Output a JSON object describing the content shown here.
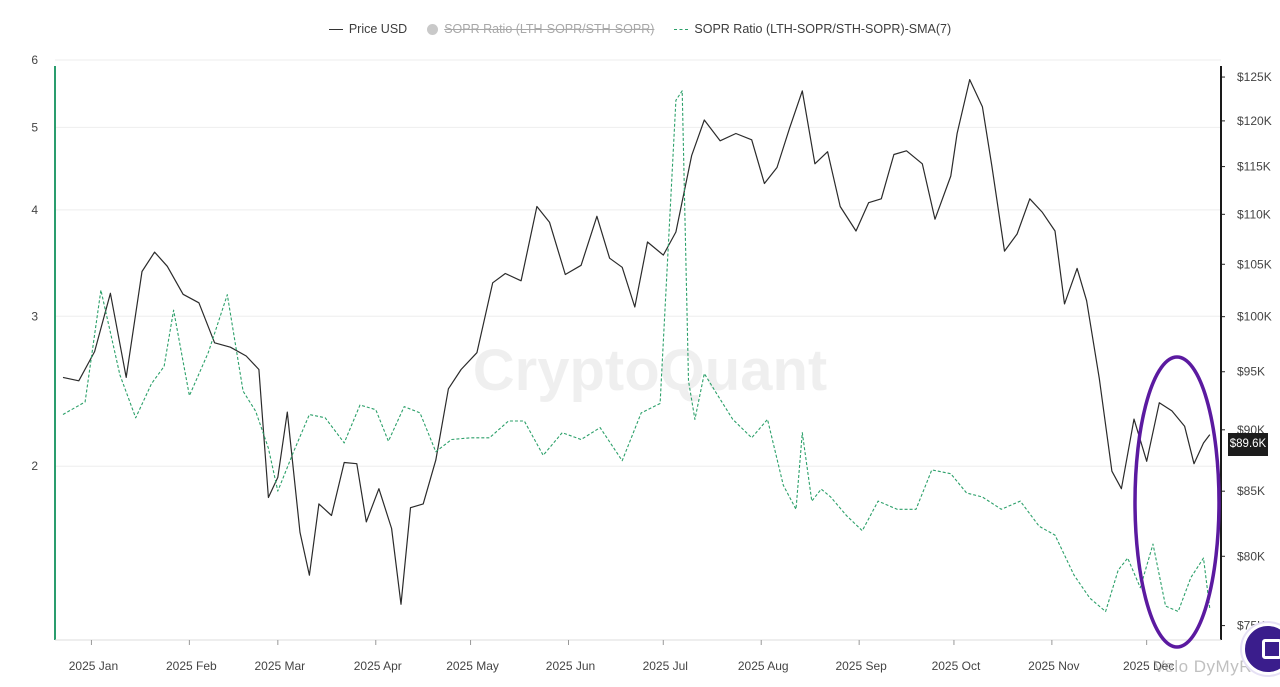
{
  "legend": {
    "price": "Price USD",
    "sopr": "SOPR Ratio (LTH-SOPR/STH-SOPR)",
    "sma": "SOPR Ratio (LTH-SOPR/STH-SOPR)-SMA(7)"
  },
  "watermark": "CryptoQuant",
  "corner_watermark": "Velo DyMyR",
  "current_price_label": "$89.6K",
  "colors": {
    "price": "#2b2b2b",
    "sma": "#2ca06a",
    "left_axis": "#2a9d6e",
    "highlight_ellipse": "#5b1aa0",
    "chat_button": "#3a1d8c"
  },
  "chart_data": {
    "type": "line",
    "x_ticks": [
      "2025 Jan",
      "2025 Feb",
      "2025 Mar",
      "2025 Apr",
      "2025 May",
      "2025 Jun",
      "2025 Jul",
      "2025 Aug",
      "2025 Sep",
      "2025 Oct",
      "2025 Nov",
      "2025 Dec"
    ],
    "left_axis": {
      "scale": "log",
      "ticks": [
        2,
        3,
        4,
        5,
        6
      ],
      "range": [
        1.25,
        6
      ]
    },
    "right_axis": {
      "scale": "log",
      "ticks": [
        "$75K",
        "$80K",
        "$85K",
        "$90K",
        "$95K",
        "$100K",
        "$105K",
        "$110K",
        "$115K",
        "$120K",
        "$125K"
      ],
      "range": [
        74,
        127
      ]
    },
    "grid": true,
    "legend_position": "top-center",
    "x_range": [
      "2024-12-23",
      "2025-12-22"
    ],
    "series": [
      {
        "name": "Price USD",
        "axis": "right",
        "style": "solid",
        "x": [
          "2024-12-23",
          "2024-12-28",
          "2025-01-02",
          "2025-01-07",
          "2025-01-12",
          "2025-01-17",
          "2025-01-21",
          "2025-01-25",
          "2025-01-30",
          "2025-02-04",
          "2025-02-09",
          "2025-02-14",
          "2025-02-19",
          "2025-02-23",
          "2025-02-26",
          "2025-03-01",
          "2025-03-04",
          "2025-03-08",
          "2025-03-11",
          "2025-03-14",
          "2025-03-18",
          "2025-03-22",
          "2025-03-26",
          "2025-03-29",
          "2025-04-02",
          "2025-04-06",
          "2025-04-09",
          "2025-04-12",
          "2025-04-16",
          "2025-04-20",
          "2025-04-24",
          "2025-04-28",
          "2025-05-03",
          "2025-05-08",
          "2025-05-12",
          "2025-05-17",
          "2025-05-22",
          "2025-05-26",
          "2025-05-31",
          "2025-06-05",
          "2025-06-10",
          "2025-06-14",
          "2025-06-18",
          "2025-06-22",
          "2025-06-26",
          "2025-07-01",
          "2025-07-05",
          "2025-07-10",
          "2025-07-14",
          "2025-07-19",
          "2025-07-24",
          "2025-07-29",
          "2025-08-02",
          "2025-08-06",
          "2025-08-10",
          "2025-08-14",
          "2025-08-18",
          "2025-08-22",
          "2025-08-26",
          "2025-08-31",
          "2025-09-04",
          "2025-09-08",
          "2025-09-12",
          "2025-09-16",
          "2025-09-21",
          "2025-09-25",
          "2025-09-30",
          "2025-10-02",
          "2025-10-06",
          "2025-10-10",
          "2025-10-13",
          "2025-10-17",
          "2025-10-21",
          "2025-10-25",
          "2025-10-29",
          "2025-11-02",
          "2025-11-05",
          "2025-11-09",
          "2025-11-12",
          "2025-11-16",
          "2025-11-20",
          "2025-11-23",
          "2025-11-27",
          "2025-12-01",
          "2025-12-05",
          "2025-12-09",
          "2025-12-13",
          "2025-12-16",
          "2025-12-19",
          "2025-12-21"
        ],
        "values": [
          94.5,
          94.2,
          96.8,
          102.2,
          94.5,
          104.3,
          106.2,
          104.8,
          102.1,
          101.3,
          97.6,
          97.2,
          96.4,
          95.2,
          84.5,
          86.1,
          91.5,
          81.8,
          78.6,
          84.0,
          83.1,
          87.3,
          87.2,
          82.6,
          85.2,
          82.1,
          76.5,
          83.7,
          84.0,
          87.5,
          93.5,
          95.2,
          96.7,
          103.2,
          104.1,
          103.4,
          110.8,
          109.2,
          104.0,
          104.9,
          109.8,
          105.6,
          104.7,
          100.9,
          107.2,
          105.9,
          108.2,
          116.2,
          120.1,
          117.8,
          118.6,
          117.9,
          113.2,
          114.9,
          119.2,
          123.4,
          115.3,
          116.6,
          110.8,
          108.3,
          111.2,
          111.6,
          116.3,
          116.7,
          115.3,
          109.5,
          114.0,
          118.6,
          124.7,
          121.6,
          115.1,
          106.3,
          108.0,
          111.6,
          110.2,
          108.3,
          101.2,
          104.6,
          101.5,
          94.4,
          86.6,
          85.2,
          90.9,
          87.4,
          92.3,
          91.6,
          90.3,
          87.2,
          88.9,
          89.6
        ]
      },
      {
        "name": "SOPR Ratio (LTH-SOPR/STH-SOPR)-SMA(7)",
        "axis": "left",
        "style": "dashed",
        "x": [
          "2024-12-23",
          "2024-12-30",
          "2025-01-04",
          "2025-01-10",
          "2025-01-15",
          "2025-01-20",
          "2025-01-24",
          "2025-01-27",
          "2025-02-01",
          "2025-02-07",
          "2025-02-13",
          "2025-02-18",
          "2025-02-22",
          "2025-02-26",
          "2025-03-01",
          "2025-03-06",
          "2025-03-11",
          "2025-03-16",
          "2025-03-22",
          "2025-03-27",
          "2025-04-01",
          "2025-04-05",
          "2025-04-10",
          "2025-04-15",
          "2025-04-20",
          "2025-04-25",
          "2025-05-01",
          "2025-05-07",
          "2025-05-13",
          "2025-05-18",
          "2025-05-24",
          "2025-05-30",
          "2025-06-05",
          "2025-06-11",
          "2025-06-18",
          "2025-06-24",
          "2025-06-30",
          "2025-07-05",
          "2025-07-07",
          "2025-07-09",
          "2025-07-11",
          "2025-07-14",
          "2025-07-18",
          "2025-07-23",
          "2025-07-29",
          "2025-08-03",
          "2025-08-08",
          "2025-08-12",
          "2025-08-14",
          "2025-08-17",
          "2025-08-20",
          "2025-08-23",
          "2025-08-28",
          "2025-09-02",
          "2025-09-07",
          "2025-09-13",
          "2025-09-19",
          "2025-09-24",
          "2025-09-30",
          "2025-10-05",
          "2025-10-10",
          "2025-10-16",
          "2025-10-22",
          "2025-10-28",
          "2025-11-02",
          "2025-11-08",
          "2025-11-13",
          "2025-11-18",
          "2025-11-22",
          "2025-11-25",
          "2025-11-29",
          "2025-12-03",
          "2025-12-07",
          "2025-12-11",
          "2025-12-15",
          "2025-12-19",
          "2025-12-21"
        ],
        "values": [
          2.3,
          2.38,
          3.22,
          2.56,
          2.28,
          2.5,
          2.62,
          3.05,
          2.42,
          2.72,
          3.18,
          2.45,
          2.32,
          2.1,
          1.87,
          2.08,
          2.3,
          2.28,
          2.13,
          2.36,
          2.33,
          2.14,
          2.35,
          2.31,
          2.08,
          2.15,
          2.16,
          2.16,
          2.26,
          2.26,
          2.06,
          2.19,
          2.15,
          2.22,
          2.03,
          2.31,
          2.37,
          5.38,
          5.52,
          2.52,
          2.27,
          2.57,
          2.43,
          2.27,
          2.16,
          2.27,
          1.9,
          1.78,
          2.19,
          1.82,
          1.88,
          1.84,
          1.75,
          1.68,
          1.82,
          1.78,
          1.78,
          1.98,
          1.96,
          1.86,
          1.84,
          1.78,
          1.82,
          1.7,
          1.66,
          1.49,
          1.4,
          1.35,
          1.51,
          1.56,
          1.44,
          1.62,
          1.37,
          1.35,
          1.48,
          1.56,
          1.36
        ]
      }
    ]
  }
}
